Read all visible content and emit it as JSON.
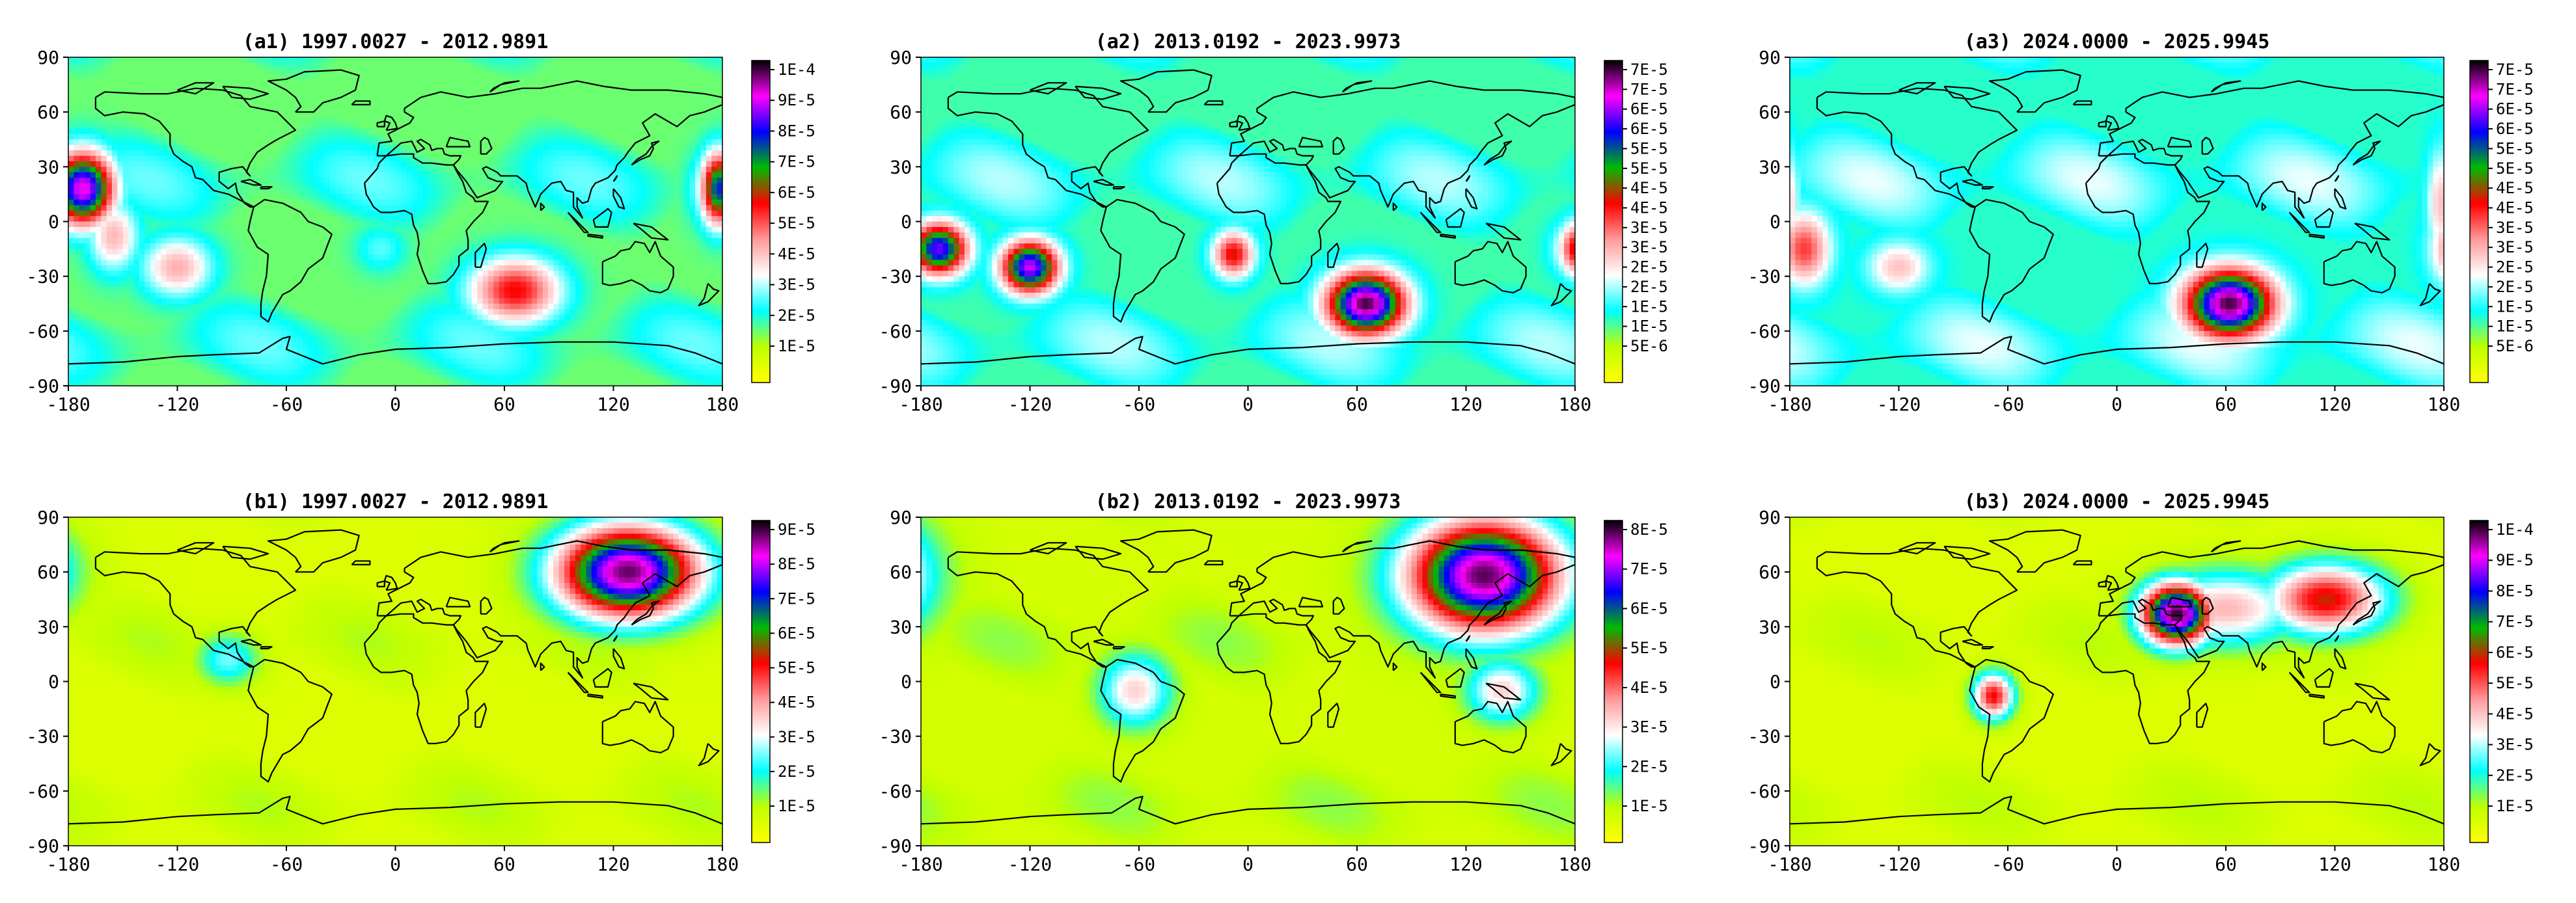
{
  "figure": {
    "panels": [
      {
        "id": "a1",
        "title": "(a1)   1997.0027 - 2012.9891",
        "colorbar_labels": [
          "1E-4",
          "9E-5",
          "8E-5",
          "7E-5",
          "6E-5",
          "5E-5",
          "4E-5",
          "3E-5",
          "2E-5",
          "1E-5"
        ],
        "colorbar_range": [
          4e-06,
          0.000104
        ],
        "peaks": [
          {
            "lon": -172,
            "lat": 18,
            "value": 9.4e-05,
            "spread_lon": 12,
            "spread_lat": 14
          },
          {
            "lon": -120,
            "lat": -25,
            "value": 4.6e-05,
            "spread_lon": 14,
            "spread_lat": 12
          },
          {
            "lon": -155,
            "lat": -8,
            "value": 4.5e-05,
            "spread_lon": 10,
            "spread_lat": 14
          },
          {
            "lon": 66,
            "lat": -38,
            "value": 6e-05,
            "spread_lon": 18,
            "spread_lat": 13
          },
          {
            "lon": 178,
            "lat": 18,
            "value": 8e-05,
            "spread_lon": 7,
            "spread_lat": 14
          },
          {
            "lon": -8,
            "lat": -15,
            "value": 3e-05,
            "spread_lon": 10,
            "spread_lat": 9
          }
        ],
        "background": 2e-05
      },
      {
        "id": "a2",
        "title": "(a2)   2013.0192 - 2023.9973",
        "colorbar_labels": [
          "7E-5",
          "7E-5",
          "6E-5",
          "6E-5",
          "5E-5",
          "5E-5",
          "4E-5",
          "4E-5",
          "3E-5",
          "3E-5",
          "2E-5",
          "2E-5",
          "1E-5",
          "1E-5",
          "5E-6"
        ],
        "colorbar_range": [
          2e-06,
          7.2e-05
        ],
        "peaks": [
          {
            "lon": -170,
            "lat": -15,
            "value": 6e-05,
            "spread_lon": 11,
            "spread_lat": 10
          },
          {
            "lon": -120,
            "lat": -25,
            "value": 6.3e-05,
            "spread_lon": 11,
            "spread_lat": 10
          },
          {
            "lon": -8,
            "lat": -18,
            "value": 4.2e-05,
            "spread_lon": 8,
            "spread_lat": 9
          },
          {
            "lon": 65,
            "lat": -45,
            "value": 7e-05,
            "spread_lon": 15,
            "spread_lat": 12
          },
          {
            "lon": 178,
            "lat": -15,
            "value": 3.8e-05,
            "spread_lon": 5,
            "spread_lat": 10
          }
        ],
        "background": 1.5e-05
      },
      {
        "id": "a3",
        "title": "(a3)   2024.0000 - 2025.9945",
        "colorbar_labels": [
          "7E-5",
          "7E-5",
          "6E-5",
          "6E-5",
          "5E-5",
          "5E-5",
          "4E-5",
          "4E-5",
          "3E-5",
          "3E-5",
          "2E-5",
          "2E-5",
          "1E-5",
          "1E-5",
          "5E-6"
        ],
        "colorbar_range": [
          2e-06,
          7.2e-05
        ],
        "peaks": [
          {
            "lon": -172,
            "lat": -15,
            "value": 3.8e-05,
            "spread_lon": 10,
            "spread_lat": 14
          },
          {
            "lon": -120,
            "lat": -25,
            "value": 3e-05,
            "spread_lon": 12,
            "spread_lat": 10
          },
          {
            "lon": 62,
            "lat": -45,
            "value": 7e-05,
            "spread_lon": 17,
            "spread_lat": 13
          },
          {
            "lon": 178,
            "lat": 10,
            "value": 3e-05,
            "spread_lon": 5,
            "spread_lat": 20
          }
        ],
        "background": 1.6e-05
      },
      {
        "id": "b1",
        "title": "(b1)   1997.0027 - 2012.9891",
        "colorbar_labels": [
          "9E-5",
          "8E-5",
          "7E-5",
          "6E-5",
          "5E-5",
          "4E-5",
          "3E-5",
          "2E-5",
          "1E-5"
        ],
        "colorbar_range": [
          4e-06,
          9.9e-05
        ],
        "peaks": [
          {
            "lon": 128,
            "lat": 60,
            "value": 9.5e-05,
            "spread_lon": 28,
            "spread_lat": 18
          },
          {
            "lon": -92,
            "lat": 12,
            "value": 3e-05,
            "spread_lon": 12,
            "spread_lat": 10
          }
        ],
        "background": 1e-05
      },
      {
        "id": "b2",
        "title": "(b2)   2013.0192 - 2023.9973",
        "colorbar_labels": [
          "8E-5",
          "7E-5",
          "6E-5",
          "5E-5",
          "4E-5",
          "3E-5",
          "2E-5",
          "1E-5"
        ],
        "colorbar_range": [
          4e-06,
          8.5e-05
        ],
        "peaks": [
          {
            "lon": 130,
            "lat": 58,
            "value": 8.2e-05,
            "spread_lon": 30,
            "spread_lat": 22
          },
          {
            "lon": -62,
            "lat": -5,
            "value": 3.5e-05,
            "spread_lon": 14,
            "spread_lat": 14
          },
          {
            "lon": 140,
            "lat": -5,
            "value": 3.5e-05,
            "spread_lon": 14,
            "spread_lat": 12
          }
        ],
        "background": 1e-05
      },
      {
        "id": "b3",
        "title": "(b3)   2024.0000 - 2025.9945",
        "colorbar_labels": [
          "1E-4",
          "9E-5",
          "8E-5",
          "7E-5",
          "6E-5",
          "5E-5",
          "4E-5",
          "3E-5",
          "2E-5",
          "1E-5"
        ],
        "colorbar_range": [
          4e-06,
          0.000104
        ],
        "peaks": [
          {
            "lon": 33,
            "lat": 37,
            "value": 0.000102,
            "spread_lon": 14,
            "spread_lat": 12
          },
          {
            "lon": 115,
            "lat": 45,
            "value": 6.2e-05,
            "spread_lon": 24,
            "spread_lat": 14
          },
          {
            "lon": -68,
            "lat": -8,
            "value": 6e-05,
            "spread_lon": 8,
            "spread_lat": 9
          },
          {
            "lon": 60,
            "lat": 40,
            "value": 4.5e-05,
            "spread_lon": 30,
            "spread_lat": 15
          }
        ],
        "background": 1e-05
      }
    ],
    "lon_ticks": [
      "-180",
      "-120",
      "-60",
      "0",
      "60",
      "120",
      "180"
    ],
    "lat_ticks": [
      "90",
      "60",
      "30",
      "0",
      "-30",
      "-60",
      "-90"
    ],
    "colormap": [
      "#ffff00",
      "#bfff00",
      "#00ffff",
      "#ffffff",
      "#ff9999",
      "#ff0000",
      "#00bb00",
      "#0000ff",
      "#ff00ff",
      "#000000"
    ]
  }
}
